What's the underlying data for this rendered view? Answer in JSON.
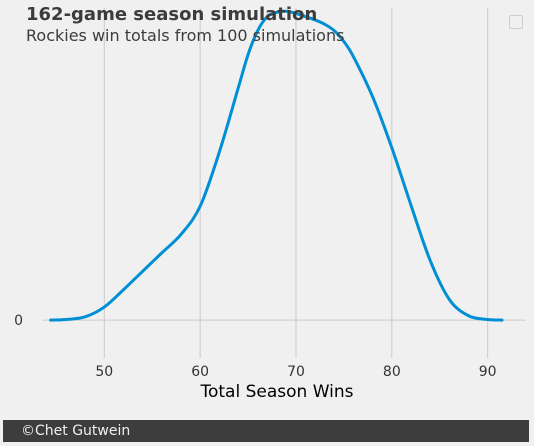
{
  "chart_data": {
    "type": "line",
    "title": "162-game season simulation",
    "subtitle": "Rockies win totals from 100 simulations",
    "xlabel": "Total Season Wins",
    "ylabel": "",
    "xlim": [
      43.5,
      94
    ],
    "ylim": [
      -0.0035,
      0.0288
    ],
    "x_ticks": [
      50,
      60,
      70,
      80,
      90
    ],
    "y_ticks": [
      0
    ],
    "grid": true,
    "legend": "top-right (empty)",
    "series": [
      {
        "color": "#008fd5",
        "x": [
          44.4,
          46,
          48,
          50,
          52,
          54,
          56,
          58,
          60,
          62,
          64,
          65,
          66,
          67,
          68,
          69,
          70,
          71,
          72,
          73,
          74,
          75,
          76,
          78,
          80,
          82,
          84,
          86,
          88,
          90,
          91.5
        ],
        "y": [
          0.0,
          5e-05,
          0.0003,
          0.0012,
          0.0028,
          0.0045,
          0.0062,
          0.0079,
          0.0105,
          0.0155,
          0.0215,
          0.0245,
          0.0267,
          0.028,
          0.0284,
          0.0285,
          0.0283,
          0.028,
          0.0277,
          0.0273,
          0.0267,
          0.0257,
          0.0243,
          0.0206,
          0.0159,
          0.0106,
          0.0055,
          0.0019,
          0.0004,
          5e-05,
          0.0
        ]
      }
    ]
  },
  "footer": {
    "credit": "©Chet Gutwein"
  }
}
